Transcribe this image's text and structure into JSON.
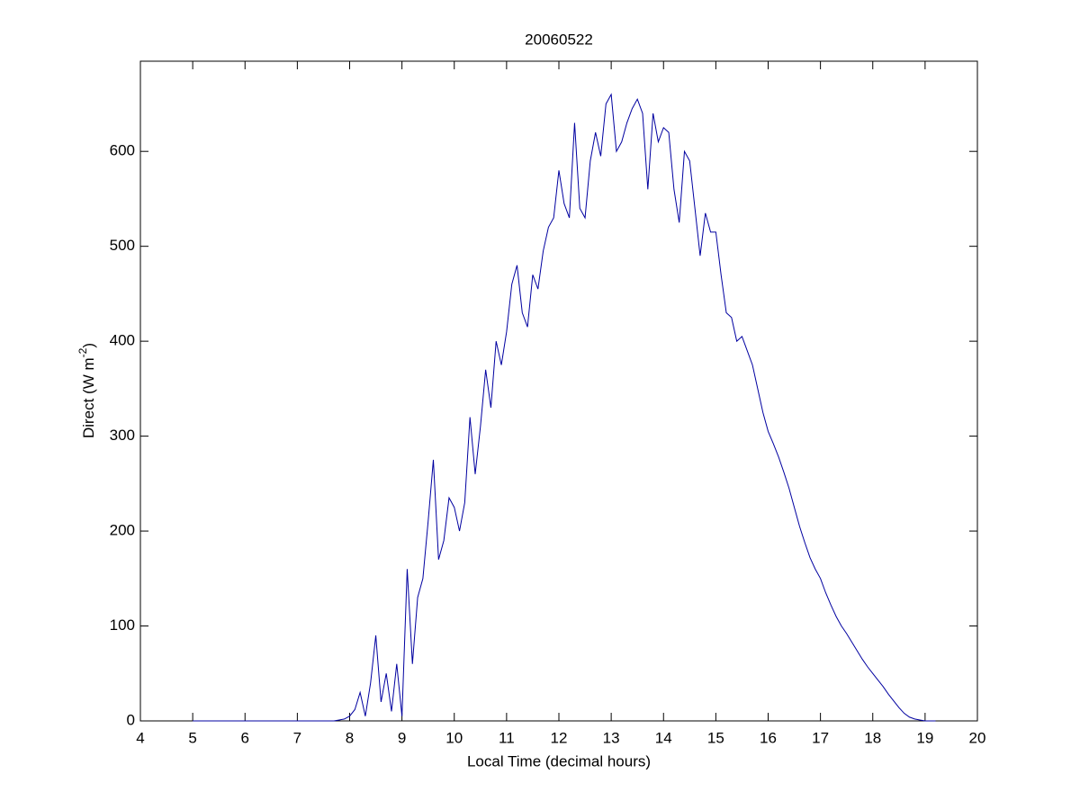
{
  "chart_data": {
    "type": "line",
    "title": "20060522",
    "xlabel": "Local Time (decimal hours)",
    "ylabel": [
      "Direct (W m",
      "-2",
      ")"
    ],
    "x": [
      5.0,
      5.1,
      5.2,
      5.3,
      5.4,
      5.5,
      5.6,
      5.7,
      5.8,
      5.9,
      6.0,
      6.1,
      6.2,
      6.3,
      6.4,
      6.5,
      6.6,
      6.7,
      6.8,
      6.9,
      7.0,
      7.1,
      7.2,
      7.3,
      7.4,
      7.5,
      7.6,
      7.7,
      7.8,
      7.9,
      8.0,
      8.1,
      8.2,
      8.3,
      8.4,
      8.5,
      8.6,
      8.7,
      8.8,
      8.9,
      9.0,
      9.1,
      9.2,
      9.3,
      9.4,
      9.5,
      9.6,
      9.7,
      9.8,
      9.9,
      10.0,
      10.1,
      10.2,
      10.3,
      10.4,
      10.5,
      10.6,
      10.7,
      10.8,
      10.9,
      11.0,
      11.1,
      11.2,
      11.3,
      11.4,
      11.5,
      11.6,
      11.7,
      11.8,
      11.9,
      12.0,
      12.1,
      12.2,
      12.3,
      12.4,
      12.5,
      12.6,
      12.7,
      12.8,
      12.9,
      13.0,
      13.1,
      13.2,
      13.3,
      13.4,
      13.5,
      13.6,
      13.7,
      13.8,
      13.9,
      14.0,
      14.1,
      14.2,
      14.3,
      14.4,
      14.5,
      14.6,
      14.7,
      14.8,
      14.9,
      15.0,
      15.1,
      15.2,
      15.3,
      15.4,
      15.5,
      15.6,
      15.7,
      15.8,
      15.9,
      16.0,
      16.1,
      16.2,
      16.3,
      16.4,
      16.5,
      16.6,
      16.7,
      16.8,
      16.9,
      17.0,
      17.1,
      17.2,
      17.3,
      17.4,
      17.5,
      17.6,
      17.7,
      17.8,
      17.9,
      18.0,
      18.1,
      18.2,
      18.3,
      18.4,
      18.5,
      18.6,
      18.7,
      18.8,
      18.9,
      19.0,
      19.1,
      19.2
    ],
    "series": [
      {
        "color": "#0000a0",
        "values": [
          0,
          0,
          0,
          0,
          0,
          0,
          0,
          0,
          0,
          0,
          0,
          0,
          0,
          0,
          0,
          0,
          0,
          0,
          0,
          0,
          0,
          0,
          0,
          0,
          0,
          0,
          0,
          0,
          1,
          2,
          5,
          12,
          30,
          5,
          40,
          90,
          20,
          50,
          10,
          60,
          5,
          160,
          60,
          130,
          150,
          210,
          275,
          170,
          190,
          235,
          225,
          200,
          230,
          320,
          260,
          310,
          370,
          330,
          400,
          375,
          410,
          460,
          480,
          430,
          415,
          470,
          455,
          495,
          520,
          530,
          580,
          545,
          530,
          630,
          540,
          530,
          590,
          620,
          595,
          650,
          660,
          600,
          610,
          630,
          645,
          655,
          640,
          560,
          640,
          610,
          625,
          620,
          560,
          525,
          600,
          590,
          540,
          490,
          535,
          515,
          515,
          470,
          430,
          425,
          400,
          405,
          390,
          375,
          350,
          325,
          305,
          292,
          278,
          262,
          245,
          225,
          205,
          188,
          172,
          160,
          150,
          135,
          122,
          110,
          100,
          92,
          83,
          74,
          65,
          57,
          50,
          43,
          36,
          28,
          21,
          14,
          8,
          4,
          2,
          1,
          0,
          0,
          0
        ]
      }
    ],
    "xlim": [
      4,
      20
    ],
    "ylim": [
      0,
      695
    ],
    "xticks": [
      4,
      5,
      6,
      7,
      8,
      9,
      10,
      11,
      12,
      13,
      14,
      15,
      16,
      17,
      18,
      19,
      20
    ],
    "yticks": [
      0,
      100,
      200,
      300,
      400,
      500,
      600
    ]
  }
}
